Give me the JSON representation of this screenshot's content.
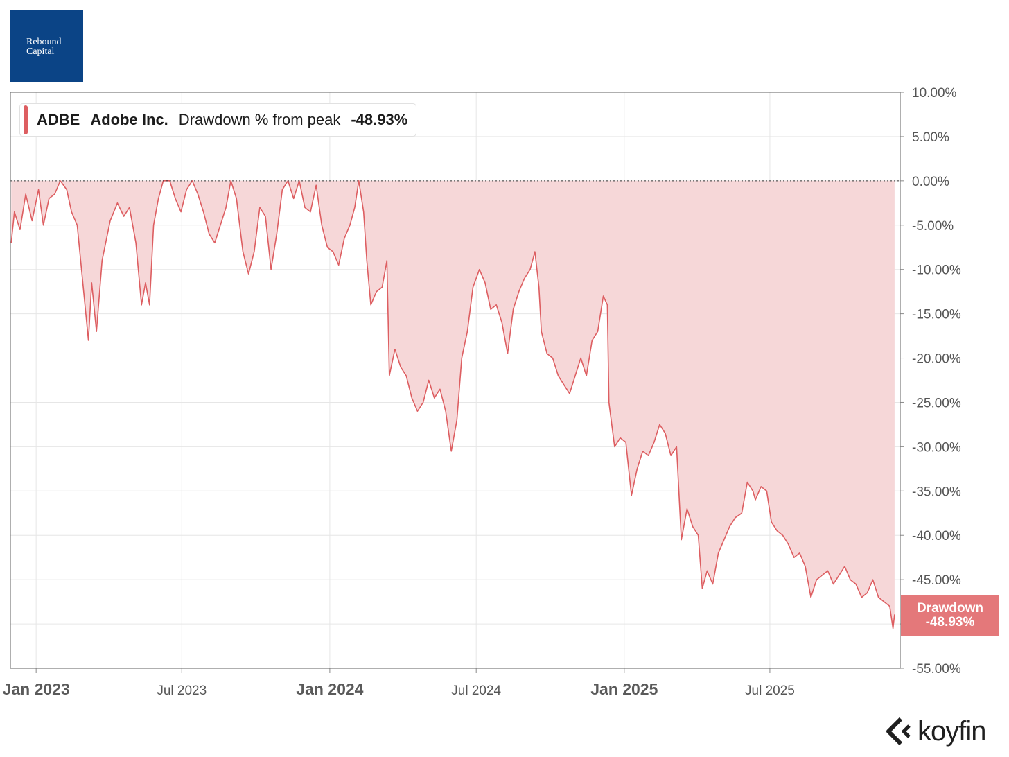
{
  "logo": {
    "line1": "Rebound",
    "line2": "Capital"
  },
  "legend": {
    "ticker": "ADBE",
    "name": "Adobe Inc.",
    "metric": "Drawdown % from peak",
    "value": "-48.93%",
    "color": "#dd5e61"
  },
  "last_value_label": {
    "line1": "Drawdown",
    "line2": "-48.93%"
  },
  "brand": {
    "name": "koyfin"
  },
  "chart_data": {
    "type": "area",
    "series": [
      {
        "name": "ADBE Adobe Inc. Drawdown % from peak",
        "color": "#dd5e61",
        "fill": "#f6d7d8",
        "points": [
          [
            "2022-12-01",
            -7.0
          ],
          [
            "2022-12-05",
            -3.5
          ],
          [
            "2022-12-12",
            -5.5
          ],
          [
            "2022-12-19",
            -1.5
          ],
          [
            "2022-12-27",
            -4.5
          ],
          [
            "2023-01-04",
            -1.0
          ],
          [
            "2023-01-10",
            -5.0
          ],
          [
            "2023-01-17",
            -2.0
          ],
          [
            "2023-01-24",
            -1.5
          ],
          [
            "2023-01-31",
            0.0
          ],
          [
            "2023-02-08",
            -1.0
          ],
          [
            "2023-02-14",
            -3.5
          ],
          [
            "2023-02-21",
            -5.0
          ],
          [
            "2023-02-28",
            -11.5
          ],
          [
            "2023-03-07",
            -18.0
          ],
          [
            "2023-03-11",
            -11.5
          ],
          [
            "2023-03-17",
            -17.0
          ],
          [
            "2023-03-24",
            -9.0
          ],
          [
            "2023-04-03",
            -4.5
          ],
          [
            "2023-04-12",
            -2.5
          ],
          [
            "2023-04-20",
            -4.0
          ],
          [
            "2023-04-27",
            -3.0
          ],
          [
            "2023-05-05",
            -7.0
          ],
          [
            "2023-05-12",
            -14.0
          ],
          [
            "2023-05-17",
            -11.5
          ],
          [
            "2023-05-22",
            -14.0
          ],
          [
            "2023-05-27",
            -5.0
          ],
          [
            "2023-06-02",
            -2.0
          ],
          [
            "2023-06-08",
            0.0
          ],
          [
            "2023-06-16",
            0.0
          ],
          [
            "2023-06-23",
            -2.0
          ],
          [
            "2023-06-30",
            -3.5
          ],
          [
            "2023-07-07",
            -1.0
          ],
          [
            "2023-07-14",
            0.0
          ],
          [
            "2023-07-21",
            -1.5
          ],
          [
            "2023-07-28",
            -3.5
          ],
          [
            "2023-08-04",
            -6.0
          ],
          [
            "2023-08-11",
            -7.0
          ],
          [
            "2023-08-18",
            -5.0
          ],
          [
            "2023-08-25",
            -3.0
          ],
          [
            "2023-08-31",
            0.0
          ],
          [
            "2023-09-07",
            -2.0
          ],
          [
            "2023-09-15",
            -8.0
          ],
          [
            "2023-09-22",
            -10.5
          ],
          [
            "2023-09-29",
            -8.0
          ],
          [
            "2023-10-06",
            -3.0
          ],
          [
            "2023-10-13",
            -4.0
          ],
          [
            "2023-10-20",
            -10.0
          ],
          [
            "2023-10-27",
            -6.0
          ],
          [
            "2023-11-03",
            -1.0
          ],
          [
            "2023-11-10",
            0.0
          ],
          [
            "2023-11-17",
            -2.0
          ],
          [
            "2023-11-24",
            0.0
          ],
          [
            "2023-12-01",
            -3.0
          ],
          [
            "2023-12-08",
            -3.5
          ],
          [
            "2023-12-15",
            -0.5
          ],
          [
            "2023-12-22",
            -5.0
          ],
          [
            "2023-12-29",
            -7.5
          ],
          [
            "2024-01-05",
            -8.0
          ],
          [
            "2024-01-12",
            -9.5
          ],
          [
            "2024-01-19",
            -6.5
          ],
          [
            "2024-01-26",
            -5.0
          ],
          [
            "2024-02-01",
            -3.0
          ],
          [
            "2024-02-06",
            0.0
          ],
          [
            "2024-02-12",
            -3.5
          ],
          [
            "2024-02-16",
            -9.0
          ],
          [
            "2024-02-21",
            -14.0
          ],
          [
            "2024-02-28",
            -12.5
          ],
          [
            "2024-03-06",
            -12.0
          ],
          [
            "2024-03-12",
            -9.0
          ],
          [
            "2024-03-15",
            -22.0
          ],
          [
            "2024-03-22",
            -19.0
          ],
          [
            "2024-03-29",
            -21.0
          ],
          [
            "2024-04-05",
            -22.0
          ],
          [
            "2024-04-12",
            -24.5
          ],
          [
            "2024-04-19",
            -26.0
          ],
          [
            "2024-04-26",
            -25.0
          ],
          [
            "2024-05-03",
            -22.5
          ],
          [
            "2024-05-10",
            -24.5
          ],
          [
            "2024-05-17",
            -23.5
          ],
          [
            "2024-05-24",
            -26.0
          ],
          [
            "2024-05-31",
            -30.5
          ],
          [
            "2024-06-07",
            -27.0
          ],
          [
            "2024-06-13",
            -20.0
          ],
          [
            "2024-06-20",
            -17.0
          ],
          [
            "2024-06-27",
            -12.0
          ],
          [
            "2024-07-05",
            -10.0
          ],
          [
            "2024-07-12",
            -11.5
          ],
          [
            "2024-07-19",
            -14.5
          ],
          [
            "2024-07-26",
            -14.0
          ],
          [
            "2024-08-02",
            -16.0
          ],
          [
            "2024-08-09",
            -19.5
          ],
          [
            "2024-08-16",
            -14.5
          ],
          [
            "2024-08-23",
            -12.5
          ],
          [
            "2024-08-30",
            -11.0
          ],
          [
            "2024-09-06",
            -10.0
          ],
          [
            "2024-09-12",
            -8.0
          ],
          [
            "2024-09-17",
            -12.0
          ],
          [
            "2024-09-20",
            -17.0
          ],
          [
            "2024-09-27",
            -19.5
          ],
          [
            "2024-10-04",
            -20.0
          ],
          [
            "2024-10-11",
            -22.0
          ],
          [
            "2024-10-18",
            -23.0
          ],
          [
            "2024-10-25",
            -24.0
          ],
          [
            "2024-11-01",
            -22.0
          ],
          [
            "2024-11-08",
            -20.0
          ],
          [
            "2024-11-15",
            -22.0
          ],
          [
            "2024-11-22",
            -18.0
          ],
          [
            "2024-11-29",
            -17.0
          ],
          [
            "2024-12-06",
            -13.0
          ],
          [
            "2024-12-11",
            -14.0
          ],
          [
            "2024-12-13",
            -25.0
          ],
          [
            "2024-12-20",
            -30.0
          ],
          [
            "2024-12-27",
            -29.0
          ],
          [
            "2025-01-03",
            -29.5
          ],
          [
            "2025-01-10",
            -35.5
          ],
          [
            "2025-01-17",
            -32.5
          ],
          [
            "2025-01-24",
            -30.5
          ],
          [
            "2025-01-31",
            -31.0
          ],
          [
            "2025-02-07",
            -29.5
          ],
          [
            "2025-02-14",
            -27.5
          ],
          [
            "2025-02-21",
            -28.5
          ],
          [
            "2025-02-28",
            -31.0
          ],
          [
            "2025-03-07",
            -30.0
          ],
          [
            "2025-03-13",
            -40.5
          ],
          [
            "2025-03-20",
            -37.0
          ],
          [
            "2025-03-27",
            -39.0
          ],
          [
            "2025-04-03",
            -40.0
          ],
          [
            "2025-04-08",
            -46.0
          ],
          [
            "2025-04-14",
            -44.0
          ],
          [
            "2025-04-21",
            -45.5
          ],
          [
            "2025-04-28",
            -42.0
          ],
          [
            "2025-05-05",
            -40.5
          ],
          [
            "2025-05-12",
            -39.0
          ],
          [
            "2025-05-19",
            -38.0
          ],
          [
            "2025-05-27",
            -37.5
          ],
          [
            "2025-06-03",
            -34.0
          ],
          [
            "2025-06-10",
            -35.0
          ],
          [
            "2025-06-13",
            -36.0
          ],
          [
            "2025-06-20",
            -34.5
          ],
          [
            "2025-06-27",
            -35.0
          ],
          [
            "2025-07-03",
            -38.5
          ],
          [
            "2025-07-10",
            -39.5
          ],
          [
            "2025-07-17",
            -40.0
          ],
          [
            "2025-07-24",
            -41.0
          ],
          [
            "2025-07-31",
            -42.5
          ],
          [
            "2025-08-07",
            -42.0
          ],
          [
            "2025-08-14",
            -43.5
          ],
          [
            "2025-08-21",
            -47.0
          ],
          [
            "2025-08-28",
            -45.0
          ],
          [
            "2025-09-04",
            -44.5
          ],
          [
            "2025-09-11",
            -44.0
          ],
          [
            "2025-09-18",
            -45.5
          ],
          [
            "2025-09-25",
            -44.5
          ],
          [
            "2025-10-02",
            -43.5
          ],
          [
            "2025-10-09",
            -45.0
          ],
          [
            "2025-10-16",
            -45.5
          ],
          [
            "2025-10-23",
            -47.0
          ],
          [
            "2025-10-30",
            -46.5
          ],
          [
            "2025-11-06",
            -45.0
          ],
          [
            "2025-11-13",
            -47.0
          ],
          [
            "2025-11-20",
            -47.5
          ],
          [
            "2025-11-27",
            -48.0
          ],
          [
            "2025-12-01",
            -50.5
          ],
          [
            "2025-12-03",
            -48.93
          ]
        ]
      }
    ],
    "reference_line": 0,
    "ylim": [
      -55,
      10
    ],
    "yticks": [
      10,
      5,
      0,
      -5,
      -10,
      -15,
      -20,
      -25,
      -30,
      -35,
      -40,
      -45,
      -50,
      -55
    ],
    "ytick_labels": [
      "10.00%",
      "5.00%",
      "0.00%",
      "-5.00%",
      "-10.00%",
      "-15.00%",
      "-20.00%",
      "-25.00%",
      "-30.00%",
      "-35.00%",
      "-40.00%",
      "-45.00%",
      "",
      "-55.00%"
    ],
    "xlim": [
      "2022-11-30",
      "2025-12-10"
    ],
    "xticks": [
      {
        "date": "2023-01-01",
        "label": "Jan 2023",
        "major": true
      },
      {
        "date": "2023-07-01",
        "label": "Jul 2023",
        "major": false
      },
      {
        "date": "2024-01-01",
        "label": "Jan 2024",
        "major": true
      },
      {
        "date": "2024-07-01",
        "label": "Jul 2024",
        "major": false
      },
      {
        "date": "2025-01-01",
        "label": "Jan 2025",
        "major": true
      },
      {
        "date": "2025-07-01",
        "label": "Jul 2025",
        "major": false
      }
    ],
    "grid": true,
    "legend_position": "top-left",
    "axis_side": "right"
  }
}
